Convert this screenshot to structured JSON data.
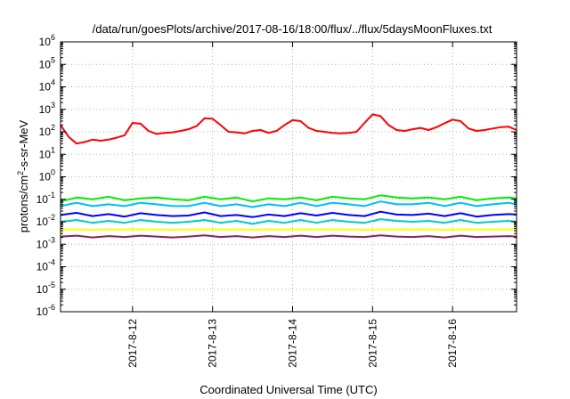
{
  "chart_data": {
    "type": "line",
    "title": "/data/run/goesPlots/archive/2017-08-16/18:00/flux/../flux/5daysMoonFluxes.txt",
    "xlabel": "Coordinated Universal Time (UTC)",
    "ylabel_parts": [
      "protons/cm",
      "2",
      "-s-sr-MeV"
    ],
    "yscale": "log",
    "ylim_exp": [
      -6,
      6
    ],
    "xlim_days": [
      11.1,
      16.8
    ],
    "x_ticks": [
      {
        "label": "2017-8-12",
        "day": 12
      },
      {
        "label": "2017-8-13",
        "day": 13
      },
      {
        "label": "2017-8-14",
        "day": 14
      },
      {
        "label": "2017-8-15",
        "day": 15
      },
      {
        "label": "2017-8-16",
        "day": 16
      }
    ],
    "y_ticks": [
      {
        "base": "10",
        "exp": "6"
      },
      {
        "base": "10",
        "exp": "5"
      },
      {
        "base": "10",
        "exp": "4"
      },
      {
        "base": "10",
        "exp": "3"
      },
      {
        "base": "10",
        "exp": "2"
      },
      {
        "base": "10",
        "exp": "1"
      },
      {
        "base": "10",
        "exp": "0"
      },
      {
        "base": "10",
        "exp": "-1"
      },
      {
        "base": "10",
        "exp": "-2"
      },
      {
        "base": "10",
        "exp": "-3"
      },
      {
        "base": "10",
        "exp": "-4"
      },
      {
        "base": "10",
        "exp": "-5"
      },
      {
        "base": "10",
        "exp": "-6"
      }
    ],
    "grid": true,
    "series": [
      {
        "color": "#ff0000",
        "x": [
          11.1,
          11.2,
          11.3,
          11.4,
          11.5,
          11.6,
          11.7,
          11.8,
          11.9,
          12.0,
          12.1,
          12.2,
          12.3,
          12.4,
          12.5,
          12.6,
          12.7,
          12.8,
          12.9,
          13.0,
          13.1,
          13.2,
          13.3,
          13.4,
          13.5,
          13.6,
          13.7,
          13.8,
          13.9,
          14.0,
          14.1,
          14.2,
          14.3,
          14.4,
          14.5,
          14.6,
          14.7,
          14.8,
          14.9,
          15.0,
          15.1,
          15.2,
          15.3,
          15.4,
          15.5,
          15.6,
          15.7,
          15.8,
          15.9,
          16.0,
          16.1,
          16.2,
          16.3,
          16.4,
          16.5,
          16.6,
          16.7,
          16.8
        ],
        "y": [
          200,
          60,
          30,
          35,
          45,
          40,
          45,
          55,
          70,
          250,
          230,
          110,
          80,
          90,
          95,
          110,
          130,
          180,
          400,
          380,
          200,
          100,
          95,
          85,
          110,
          120,
          90,
          110,
          200,
          330,
          300,
          150,
          110,
          100,
          90,
          85,
          90,
          100,
          250,
          600,
          500,
          200,
          120,
          110,
          130,
          150,
          120,
          160,
          240,
          350,
          300,
          140,
          110,
          120,
          140,
          160,
          170,
          120
        ]
      },
      {
        "color": "#00ee00",
        "x": [
          11.1,
          11.3,
          11.5,
          11.7,
          11.9,
          12.1,
          12.3,
          12.5,
          12.7,
          12.9,
          13.1,
          13.3,
          13.5,
          13.7,
          13.9,
          14.1,
          14.3,
          14.5,
          14.7,
          14.9,
          15.1,
          15.3,
          15.5,
          15.7,
          15.9,
          16.1,
          16.3,
          16.5,
          16.7,
          16.8
        ],
        "y": [
          0.08,
          0.12,
          0.1,
          0.13,
          0.09,
          0.11,
          0.12,
          0.1,
          0.09,
          0.13,
          0.1,
          0.12,
          0.08,
          0.11,
          0.1,
          0.12,
          0.09,
          0.13,
          0.11,
          0.1,
          0.15,
          0.12,
          0.11,
          0.12,
          0.1,
          0.13,
          0.09,
          0.11,
          0.12,
          0.11
        ]
      },
      {
        "color": "#00bbff",
        "x": [
          11.1,
          11.3,
          11.5,
          11.7,
          11.9,
          12.1,
          12.3,
          12.5,
          12.7,
          12.9,
          13.1,
          13.3,
          13.5,
          13.7,
          13.9,
          14.1,
          14.3,
          14.5,
          14.7,
          14.9,
          15.1,
          15.3,
          15.5,
          15.7,
          15.9,
          16.1,
          16.3,
          16.5,
          16.7,
          16.8
        ],
        "y": [
          0.05,
          0.07,
          0.05,
          0.06,
          0.05,
          0.07,
          0.06,
          0.05,
          0.05,
          0.07,
          0.05,
          0.06,
          0.045,
          0.06,
          0.05,
          0.07,
          0.05,
          0.07,
          0.06,
          0.05,
          0.08,
          0.06,
          0.06,
          0.07,
          0.05,
          0.07,
          0.05,
          0.06,
          0.07,
          0.06
        ]
      },
      {
        "color": "#0000ff",
        "x": [
          11.1,
          11.3,
          11.5,
          11.7,
          11.9,
          12.1,
          12.3,
          12.5,
          12.7,
          12.9,
          13.1,
          13.3,
          13.5,
          13.7,
          13.9,
          14.1,
          14.3,
          14.5,
          14.7,
          14.9,
          15.1,
          15.3,
          15.5,
          15.7,
          15.9,
          16.1,
          16.3,
          16.5,
          16.7,
          16.8
        ],
        "y": [
          0.02,
          0.025,
          0.018,
          0.022,
          0.017,
          0.024,
          0.02,
          0.018,
          0.019,
          0.026,
          0.018,
          0.02,
          0.016,
          0.021,
          0.018,
          0.024,
          0.019,
          0.025,
          0.02,
          0.018,
          0.028,
          0.021,
          0.02,
          0.023,
          0.018,
          0.024,
          0.017,
          0.02,
          0.022,
          0.021
        ]
      },
      {
        "color": "#00cccc",
        "x": [
          11.1,
          11.3,
          11.5,
          11.7,
          11.9,
          12.1,
          12.3,
          12.5,
          12.7,
          12.9,
          13.1,
          13.3,
          13.5,
          13.7,
          13.9,
          14.1,
          14.3,
          14.5,
          14.7,
          14.9,
          15.1,
          15.3,
          15.5,
          15.7,
          15.9,
          16.1,
          16.3,
          16.5,
          16.7,
          16.8
        ],
        "y": [
          0.01,
          0.012,
          0.009,
          0.011,
          0.009,
          0.012,
          0.01,
          0.009,
          0.01,
          0.012,
          0.009,
          0.011,
          0.008,
          0.011,
          0.009,
          0.012,
          0.009,
          0.012,
          0.01,
          0.009,
          0.013,
          0.011,
          0.01,
          0.011,
          0.009,
          0.012,
          0.009,
          0.01,
          0.011,
          0.01
        ]
      },
      {
        "color": "#ffff00",
        "x": [
          11.1,
          11.3,
          11.5,
          11.7,
          11.9,
          12.1,
          12.3,
          12.5,
          12.7,
          12.9,
          13.1,
          13.3,
          13.5,
          13.7,
          13.9,
          14.1,
          14.3,
          14.5,
          14.7,
          14.9,
          15.1,
          15.3,
          15.5,
          15.7,
          15.9,
          16.1,
          16.3,
          16.5,
          16.7,
          16.8
        ],
        "y": [
          0.0045,
          0.0045,
          0.0044,
          0.0045,
          0.0045,
          0.0046,
          0.0045,
          0.0044,
          0.0045,
          0.0046,
          0.0045,
          0.0045,
          0.0044,
          0.0045,
          0.0045,
          0.0046,
          0.0045,
          0.0045,
          0.0045,
          0.0044,
          0.0046,
          0.0045,
          0.0045,
          0.0045,
          0.0044,
          0.0046,
          0.0045,
          0.0045,
          0.0045,
          0.0045
        ]
      },
      {
        "color": "#8b2252",
        "x": [
          11.1,
          11.3,
          11.5,
          11.7,
          11.9,
          12.1,
          12.3,
          12.5,
          12.7,
          12.9,
          13.1,
          13.3,
          13.5,
          13.7,
          13.9,
          14.1,
          14.3,
          14.5,
          14.7,
          14.9,
          15.1,
          15.3,
          15.5,
          15.7,
          15.9,
          16.1,
          16.3,
          16.5,
          16.7,
          16.8
        ],
        "y": [
          0.0022,
          0.0024,
          0.002,
          0.0023,
          0.0021,
          0.0024,
          0.0022,
          0.002,
          0.0022,
          0.0025,
          0.0021,
          0.0023,
          0.002,
          0.0023,
          0.0021,
          0.0024,
          0.0021,
          0.0024,
          0.0022,
          0.0021,
          0.0025,
          0.0022,
          0.0021,
          0.0023,
          0.002,
          0.0024,
          0.0021,
          0.0022,
          0.0023,
          0.0022
        ]
      }
    ]
  }
}
